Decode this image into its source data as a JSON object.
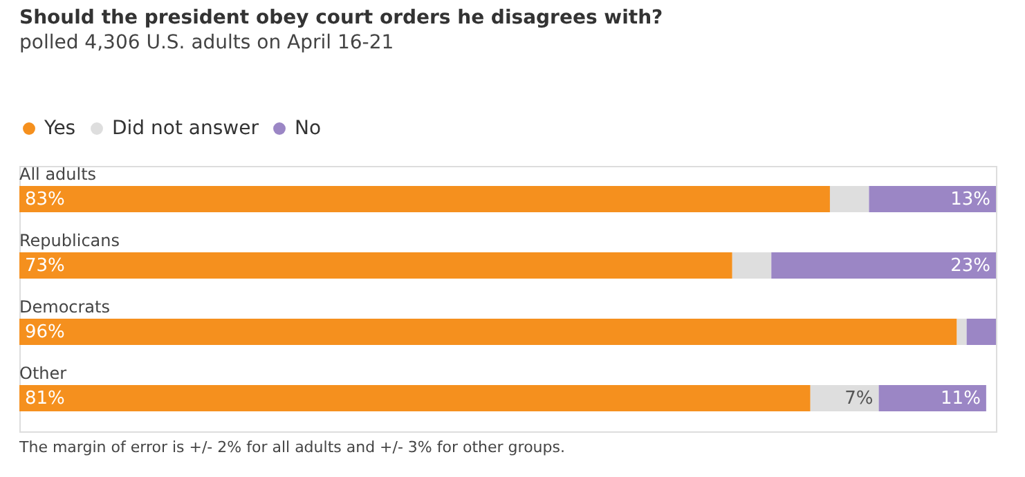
{
  "chart_data": {
    "type": "bar",
    "orientation": "horizontal",
    "stacked": true,
    "title": "Should the president obey court orders he disagrees with?",
    "subtitle": "polled 4,306 U.S. adults on April 16-21",
    "categories": [
      "All adults",
      "Republicans",
      "Democrats",
      "Other"
    ],
    "series": [
      {
        "name": "Yes",
        "color": "#f5901e",
        "values": [
          83,
          73,
          96,
          81
        ],
        "value_labels": [
          "83%",
          "73%",
          "96%",
          "81%"
        ]
      },
      {
        "name": "Did not answer",
        "color": "#dedede",
        "values": [
          4,
          4,
          1,
          7
        ],
        "value_labels": [
          null,
          null,
          null,
          "7%"
        ]
      },
      {
        "name": "No",
        "color": "#9b86c5",
        "values": [
          13,
          23,
          3,
          11
        ],
        "value_labels": [
          "13%",
          "23%",
          null,
          "11%"
        ]
      }
    ],
    "xlim": [
      0,
      100
    ],
    "legend": "top left",
    "tick_labels": false,
    "annotations": [
      "The margin of error is +/- 2% for all adults and +/- 3% for other groups."
    ]
  }
}
